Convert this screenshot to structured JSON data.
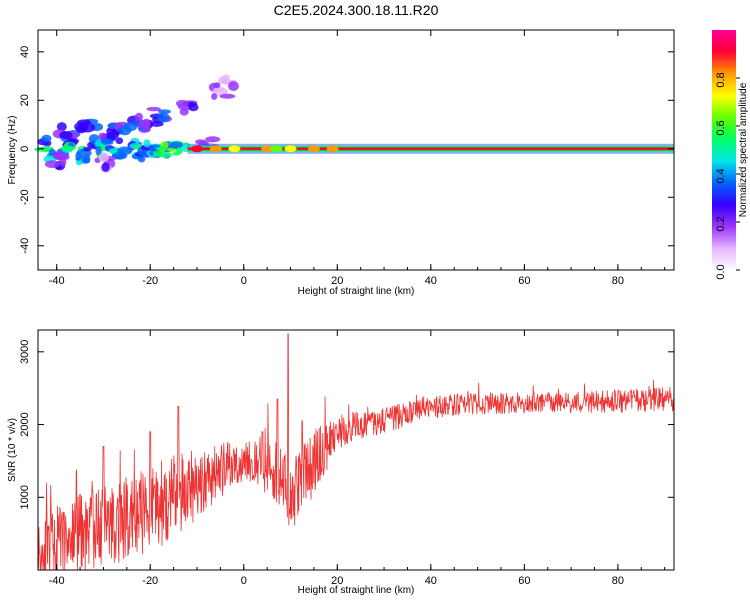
{
  "figure_title": "C2E5.2024.300.18.11.R20",
  "chart_data": [
    {
      "type": "heatmap",
      "xlabel": "Height of straight line (km)",
      "ylabel": "Frequency (Hz)",
      "xlim": [
        -44,
        92
      ],
      "ylim": [
        -50,
        49
      ],
      "xticks": [
        -40,
        -20,
        0,
        20,
        40,
        60,
        80
      ],
      "yticks": [
        -40,
        -20,
        0,
        20,
        40
      ],
      "colorbar": {
        "label": "Normalized spectral amplitude",
        "range": [
          0.0,
          1.0
        ],
        "ticks": [
          0.0,
          0.2,
          0.4,
          0.6,
          0.8
        ],
        "colormap": [
          "#ffffff",
          "#e6b3ff",
          "#9933ff",
          "#3300ff",
          "#0066ff",
          "#00e6e6",
          "#00ff66",
          "#66ff00",
          "#ffff00",
          "#ff9900",
          "#ff0033",
          "#ff0099"
        ]
      },
      "band": {
        "frequency": 0,
        "x_start": -12,
        "x_end": 92,
        "amplitude": 0.95
      },
      "blobs": [
        {
          "x": -42,
          "y": 2,
          "amp": 0.45
        },
        {
          "x": -40,
          "y": -2,
          "amp": 0.5
        },
        {
          "x": -38,
          "y": 4,
          "amp": 0.35
        },
        {
          "x": -36,
          "y": 0,
          "amp": 0.5
        },
        {
          "x": -34,
          "y": -3,
          "amp": 0.45
        },
        {
          "x": -32,
          "y": 2,
          "amp": 0.4
        },
        {
          "x": -30,
          "y": -1,
          "amp": 0.5
        },
        {
          "x": -28,
          "y": 3,
          "amp": 0.45
        },
        {
          "x": -26,
          "y": -2,
          "amp": 0.5
        },
        {
          "x": -24,
          "y": 1,
          "amp": 0.45
        },
        {
          "x": -22,
          "y": -2,
          "amp": 0.4
        },
        {
          "x": -20,
          "y": 0,
          "amp": 0.45
        },
        {
          "x": -18,
          "y": -1,
          "amp": 0.5
        },
        {
          "x": -16,
          "y": 0,
          "amp": 0.6
        },
        {
          "x": -14,
          "y": 0,
          "amp": 0.55
        },
        {
          "x": -38,
          "y": 8,
          "amp": 0.3
        },
        {
          "x": -33,
          "y": 10,
          "amp": 0.3
        },
        {
          "x": -29,
          "y": 7,
          "amp": 0.3
        },
        {
          "x": -26,
          "y": 9,
          "amp": 0.3
        },
        {
          "x": -23,
          "y": 11,
          "amp": 0.3
        },
        {
          "x": -20,
          "y": 10,
          "amp": 0.3
        },
        {
          "x": -18,
          "y": 14,
          "amp": 0.3
        },
        {
          "x": -12,
          "y": 17,
          "amp": 0.25
        },
        {
          "x": -5,
          "y": 24,
          "amp": 0.15
        },
        {
          "x": -3,
          "y": 27,
          "amp": 0.12
        },
        {
          "x": -8,
          "y": 3,
          "amp": 0.2
        },
        {
          "x": -40,
          "y": -5,
          "amp": 0.25
        },
        {
          "x": -30,
          "y": -6,
          "amp": 0.2
        }
      ],
      "band_hotspots": [
        {
          "x": -10,
          "amp": 0.9
        },
        {
          "x": -6,
          "amp": 0.8
        },
        {
          "x": -2,
          "amp": 0.75
        },
        {
          "x": 5,
          "amp": 0.85
        },
        {
          "x": 7,
          "amp": 0.6
        },
        {
          "x": 10,
          "amp": 0.7
        },
        {
          "x": 15,
          "amp": 0.85
        },
        {
          "x": 19,
          "amp": 0.8
        }
      ]
    },
    {
      "type": "line",
      "xlabel": "Height of straight line (km)",
      "ylabel": "SNR (10 * v/v)",
      "xlim": [
        -44,
        92
      ],
      "ylim": [
        0,
        3300
      ],
      "xticks": [
        -40,
        -20,
        0,
        20,
        40,
        60,
        80
      ],
      "yticks": [
        1000,
        2000,
        3000
      ],
      "color": "#ee3333",
      "trend": {
        "x": [
          -44,
          -40,
          -35,
          -30,
          -25,
          -20,
          -15,
          -10,
          -5,
          0,
          5,
          8,
          10,
          12,
          15,
          18,
          20,
          25,
          30,
          35,
          40,
          50,
          60,
          70,
          80,
          90,
          92
        ],
        "mean": [
          220,
          380,
          500,
          620,
          700,
          850,
          1000,
          1200,
          1350,
          1500,
          1450,
          1300,
          900,
          1250,
          1500,
          1700,
          1900,
          2000,
          2050,
          2150,
          2250,
          2280,
          2300,
          2300,
          2320,
          2350,
          2350
        ],
        "spread": [
          500,
          500,
          550,
          550,
          600,
          600,
          600,
          500,
          400,
          300,
          400,
          500,
          450,
          500,
          500,
          300,
          250,
          200,
          180,
          180,
          160,
          150,
          150,
          150,
          160,
          170,
          170
        ]
      },
      "spikes": [
        {
          "x": 9.5,
          "y": 3250
        },
        {
          "x": 7.2,
          "y": 2350
        },
        {
          "x": -14,
          "y": 2250
        },
        {
          "x": -20,
          "y": 1900
        },
        {
          "x": -30,
          "y": 1700
        },
        {
          "x": 4,
          "y": 1900
        },
        {
          "x": 12.5,
          "y": 2050
        }
      ]
    }
  ]
}
